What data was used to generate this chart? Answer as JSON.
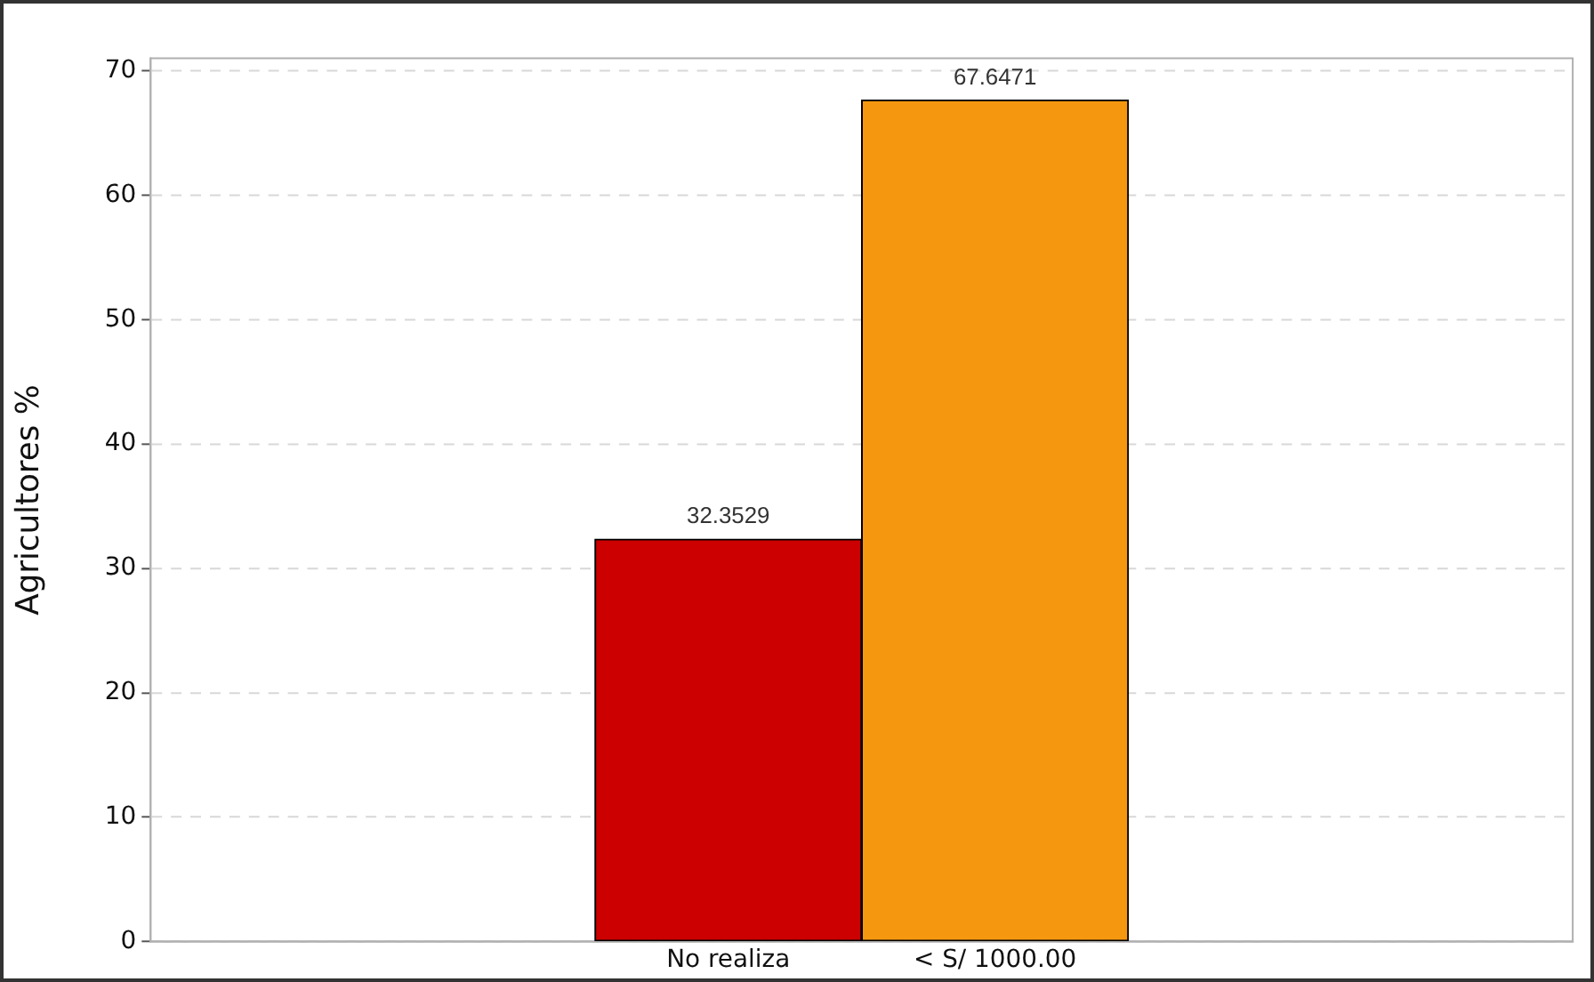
{
  "chart_data": {
    "type": "bar",
    "ylabel": "Agricultores %",
    "categories": [
      "No realiza",
      "< S/ 1000.00"
    ],
    "values": [
      32.3529,
      67.6471
    ],
    "colors": [
      "#cc0000",
      "#f5980f"
    ],
    "ylim": [
      0,
      71
    ],
    "yticks": [
      0,
      10,
      20,
      30,
      40,
      50,
      60,
      70
    ],
    "grid": "y",
    "data_labels": true,
    "legend": false
  }
}
